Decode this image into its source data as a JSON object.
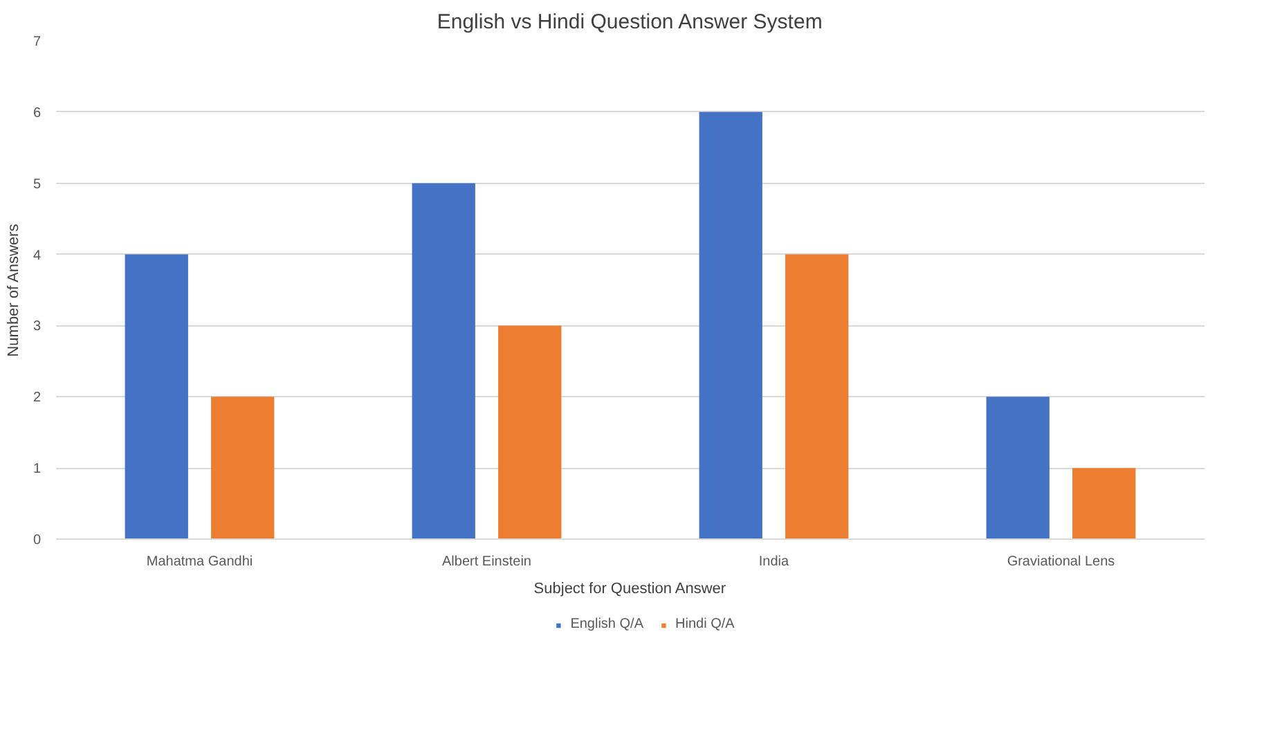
{
  "chart_data": {
    "type": "bar",
    "title": "English vs Hindi Question Answer System",
    "xlabel": "Subject for Question Answer",
    "ylabel": "Number of Answers",
    "categories": [
      "Mahatma Gandhi",
      "Albert Einstein",
      "India",
      "Graviational Lens"
    ],
    "series": [
      {
        "name": "English Q/A",
        "color": "#4472c4",
        "values": [
          4,
          5,
          6,
          2
        ]
      },
      {
        "name": "Hindi Q/A",
        "color": "#ed7d31",
        "values": [
          2,
          3,
          4,
          1
        ]
      }
    ],
    "ylim": [
      0,
      7
    ],
    "yticks": [
      0,
      1,
      2,
      3,
      4,
      5,
      6,
      7
    ],
    "grid": "y",
    "legend": "bottom"
  }
}
